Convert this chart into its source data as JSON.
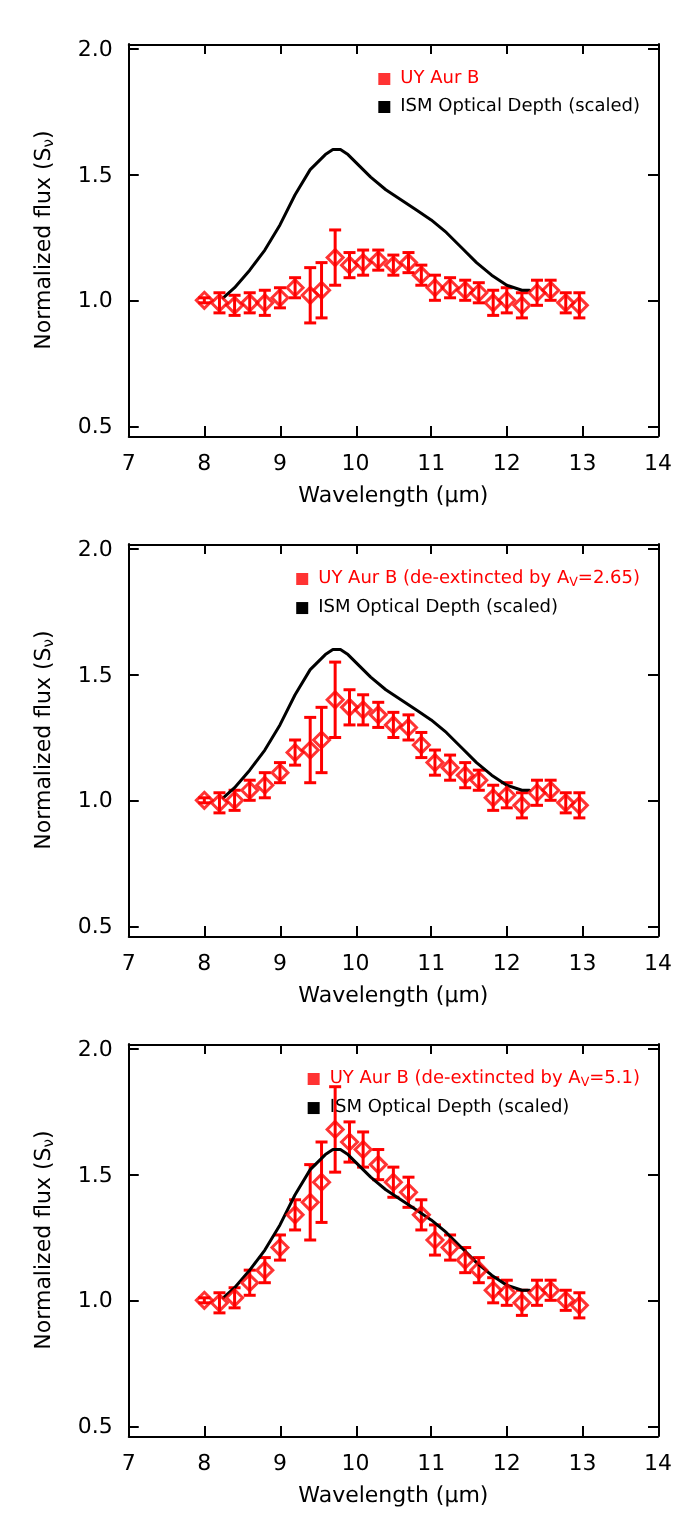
{
  "chart_data": [
    {
      "type": "scatter",
      "xlabel": "Wavelength (μm)",
      "ylabel": "Normalized flux (S$_{ν}$)",
      "xlim": [
        7,
        14
      ],
      "ylim": [
        0.46,
        2.02
      ],
      "xticks": [
        7,
        8,
        9,
        10,
        11,
        12,
        13,
        14
      ],
      "yticks": [
        {
          "value": 0.5,
          "label": "0.5"
        },
        {
          "value": 1.0,
          "label": "1.0"
        },
        {
          "value": 1.5,
          "label": "1.5"
        },
        {
          "value": 2.0,
          "label": "2.0"
        }
      ],
      "grid": false,
      "legend": "top right",
      "series": [
        {
          "name": "UY Aur B",
          "color": "#ff0000",
          "marker": "diamond",
          "x": [
            8.0,
            8.2,
            8.4,
            8.6,
            8.8,
            9.0,
            9.2,
            9.4,
            9.55,
            9.73,
            9.92,
            10.1,
            10.3,
            10.5,
            10.7,
            10.87,
            11.05,
            11.25,
            11.45,
            11.63,
            11.82,
            12.0,
            12.2,
            12.4,
            12.58,
            12.78,
            12.96
          ],
          "values": [
            1.0,
            0.99,
            0.98,
            0.99,
            0.99,
            1.01,
            1.05,
            1.02,
            1.04,
            1.17,
            1.14,
            1.15,
            1.16,
            1.14,
            1.15,
            1.1,
            1.05,
            1.05,
            1.04,
            1.03,
            0.99,
            1.0,
            0.98,
            1.03,
            1.04,
            0.99,
            0.98
          ],
          "errors": [
            0.01,
            0.04,
            0.04,
            0.04,
            0.05,
            0.04,
            0.04,
            0.11,
            0.11,
            0.11,
            0.05,
            0.05,
            0.04,
            0.04,
            0.04,
            0.04,
            0.05,
            0.04,
            0.04,
            0.04,
            0.05,
            0.05,
            0.05,
            0.05,
            0.04,
            0.04,
            0.05
          ]
        },
        {
          "name": "ISM Optical Depth (scaled)",
          "color": "#000000",
          "type": "line",
          "marker": "none",
          "x": [
            8.25,
            8.4,
            8.6,
            8.8,
            9.0,
            9.2,
            9.4,
            9.6,
            9.7,
            9.8,
            9.9,
            10.0,
            10.2,
            10.4,
            10.6,
            10.8,
            11.0,
            11.2,
            11.4,
            11.6,
            11.8,
            12.0,
            12.2,
            12.3
          ],
          "values": [
            1.01,
            1.05,
            1.12,
            1.2,
            1.3,
            1.42,
            1.52,
            1.58,
            1.6,
            1.6,
            1.58,
            1.55,
            1.49,
            1.44,
            1.4,
            1.36,
            1.32,
            1.27,
            1.21,
            1.15,
            1.1,
            1.06,
            1.04,
            1.04
          ]
        }
      ]
    },
    {
      "type": "scatter",
      "xlabel": "Wavelength (μm)",
      "ylabel": "Normalized flux (S$_{ν}$)",
      "xlim": [
        7,
        14
      ],
      "ylim": [
        0.46,
        2.02
      ],
      "xticks": [
        7,
        8,
        9,
        10,
        11,
        12,
        13,
        14
      ],
      "yticks": [
        {
          "value": 0.5,
          "label": "0.5"
        },
        {
          "value": 1.0,
          "label": "1.0"
        },
        {
          "value": 1.5,
          "label": "1.5"
        },
        {
          "value": 2.0,
          "label": "2.0"
        }
      ],
      "grid": false,
      "legend": "top right",
      "series": [
        {
          "name": "UY Aur B (de-extincted by A$_{V}$=2.65)",
          "color": "#ff0000",
          "marker": "diamond",
          "x": [
            8.0,
            8.2,
            8.4,
            8.6,
            8.8,
            9.0,
            9.2,
            9.4,
            9.55,
            9.73,
            9.92,
            10.1,
            10.3,
            10.5,
            10.7,
            10.87,
            11.05,
            11.25,
            11.45,
            11.63,
            11.82,
            12.0,
            12.2,
            12.4,
            12.58,
            12.78,
            12.96
          ],
          "values": [
            1.0,
            0.99,
            1.0,
            1.04,
            1.06,
            1.11,
            1.19,
            1.2,
            1.24,
            1.4,
            1.37,
            1.36,
            1.34,
            1.3,
            1.29,
            1.22,
            1.15,
            1.13,
            1.1,
            1.08,
            1.01,
            1.02,
            0.98,
            1.03,
            1.04,
            0.99,
            0.98
          ],
          "errors": [
            0.01,
            0.04,
            0.04,
            0.04,
            0.05,
            0.04,
            0.05,
            0.13,
            0.13,
            0.15,
            0.07,
            0.06,
            0.05,
            0.05,
            0.05,
            0.05,
            0.05,
            0.05,
            0.05,
            0.04,
            0.05,
            0.05,
            0.05,
            0.05,
            0.04,
            0.04,
            0.05
          ]
        },
        {
          "name": "ISM Optical Depth (scaled)",
          "color": "#000000",
          "type": "line",
          "marker": "none",
          "x": [
            8.25,
            8.4,
            8.6,
            8.8,
            9.0,
            9.2,
            9.4,
            9.6,
            9.7,
            9.8,
            9.9,
            10.0,
            10.2,
            10.4,
            10.6,
            10.8,
            11.0,
            11.2,
            11.4,
            11.6,
            11.8,
            12.0,
            12.2,
            12.3
          ],
          "values": [
            1.01,
            1.05,
            1.12,
            1.2,
            1.3,
            1.42,
            1.52,
            1.58,
            1.6,
            1.6,
            1.58,
            1.55,
            1.49,
            1.44,
            1.4,
            1.36,
            1.32,
            1.27,
            1.21,
            1.15,
            1.1,
            1.06,
            1.04,
            1.04
          ]
        }
      ]
    },
    {
      "type": "scatter",
      "xlabel": "Wavelength (μm)",
      "ylabel": "Normalized flux (S$_{ν}$)",
      "xlim": [
        7,
        14
      ],
      "ylim": [
        0.46,
        2.02
      ],
      "xticks": [
        7,
        8,
        9,
        10,
        11,
        12,
        13,
        14
      ],
      "yticks": [
        {
          "value": 0.5,
          "label": "0.5"
        },
        {
          "value": 1.0,
          "label": "1.0"
        },
        {
          "value": 1.5,
          "label": "1.5"
        },
        {
          "value": 2.0,
          "label": "2.0"
        }
      ],
      "grid": false,
      "legend": "top right",
      "series": [
        {
          "name": "UY Aur B (de-extincted by A$_{V}$=5.1)",
          "color": "#ff0000",
          "marker": "diamond",
          "x": [
            8.0,
            8.2,
            8.4,
            8.6,
            8.8,
            9.0,
            9.2,
            9.4,
            9.55,
            9.73,
            9.92,
            10.1,
            10.3,
            10.5,
            10.7,
            10.87,
            11.05,
            11.25,
            11.45,
            11.63,
            11.82,
            12.0,
            12.2,
            12.4,
            12.58,
            12.78,
            12.96
          ],
          "values": [
            1.0,
            0.99,
            1.01,
            1.07,
            1.12,
            1.21,
            1.34,
            1.39,
            1.47,
            1.68,
            1.63,
            1.6,
            1.54,
            1.47,
            1.43,
            1.34,
            1.24,
            1.21,
            1.16,
            1.12,
            1.04,
            1.03,
            0.99,
            1.03,
            1.04,
            1.0,
            0.98
          ],
          "errors": [
            0.01,
            0.04,
            0.04,
            0.05,
            0.05,
            0.05,
            0.06,
            0.15,
            0.16,
            0.17,
            0.08,
            0.07,
            0.06,
            0.06,
            0.06,
            0.06,
            0.06,
            0.05,
            0.05,
            0.05,
            0.05,
            0.05,
            0.05,
            0.05,
            0.04,
            0.04,
            0.05
          ]
        },
        {
          "name": "ISM Optical Depth (scaled)",
          "color": "#000000",
          "type": "line",
          "marker": "none",
          "x": [
            8.25,
            8.4,
            8.6,
            8.8,
            9.0,
            9.2,
            9.4,
            9.6,
            9.7,
            9.8,
            9.9,
            10.0,
            10.2,
            10.4,
            10.6,
            10.8,
            11.0,
            11.2,
            11.4,
            11.6,
            11.8,
            12.0,
            12.2,
            12.3
          ],
          "values": [
            1.01,
            1.05,
            1.12,
            1.2,
            1.3,
            1.42,
            1.52,
            1.58,
            1.6,
            1.6,
            1.58,
            1.55,
            1.49,
            1.44,
            1.4,
            1.36,
            1.32,
            1.27,
            1.21,
            1.15,
            1.1,
            1.06,
            1.04,
            1.04
          ]
        }
      ]
    }
  ]
}
